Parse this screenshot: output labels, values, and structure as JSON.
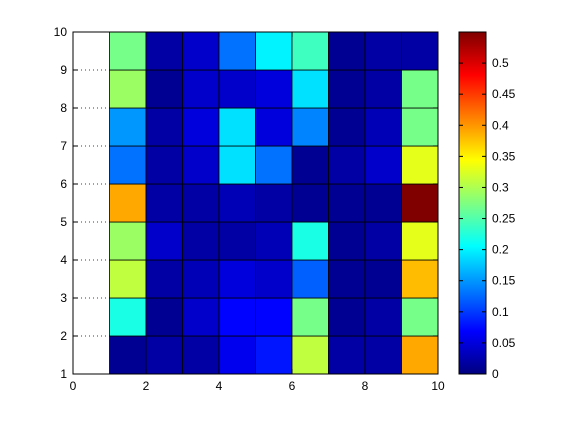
{
  "chart_data": {
    "type": "heatmap",
    "title": "",
    "xlabel": "",
    "ylabel": "",
    "xlim": [
      0,
      10
    ],
    "ylim": [
      1,
      10
    ],
    "grid": "dotted",
    "x_ticks": [
      "0",
      "2",
      "4",
      "6",
      "8",
      "10"
    ],
    "y_ticks": [
      "1",
      "2",
      "3",
      "4",
      "5",
      "6",
      "7",
      "8",
      "9",
      "10"
    ],
    "colormap": "jet",
    "color_range": [
      0,
      0.55
    ],
    "colorbar_ticks": [
      "0",
      "0.05",
      "0.1",
      "0.15",
      "0.2",
      "0.25",
      "0.3",
      "0.35",
      "0.4",
      "0.45",
      "0.5"
    ],
    "cell_x_edges": [
      1,
      2,
      3,
      4,
      5,
      6,
      7,
      8,
      9,
      10
    ],
    "cell_y_edges": [
      1,
      2,
      3,
      4,
      5,
      6,
      7,
      8,
      9,
      10
    ],
    "values": [
      [
        0.01,
        0.02,
        0.02,
        0.06,
        0.08,
        0.31,
        0.02,
        0.02,
        0.39
      ],
      [
        0.22,
        0.01,
        0.04,
        0.07,
        0.07,
        0.27,
        0.01,
        0.02,
        0.27
      ],
      [
        0.31,
        0.02,
        0.03,
        0.05,
        0.04,
        0.12,
        0.01,
        0.01,
        0.38
      ],
      [
        0.29,
        0.04,
        0.02,
        0.02,
        0.03,
        0.22,
        0.01,
        0.02,
        0.33
      ],
      [
        0.39,
        0.02,
        0.02,
        0.03,
        0.02,
        0.01,
        0.01,
        0.01,
        0.55
      ],
      [
        0.13,
        0.02,
        0.04,
        0.19,
        0.13,
        0.01,
        0.02,
        0.04,
        0.33
      ],
      [
        0.15,
        0.02,
        0.05,
        0.19,
        0.05,
        0.14,
        0.01,
        0.03,
        0.27
      ],
      [
        0.29,
        0.01,
        0.04,
        0.04,
        0.05,
        0.19,
        0.01,
        0.02,
        0.27
      ],
      [
        0.27,
        0.02,
        0.04,
        0.13,
        0.2,
        0.24,
        0.01,
        0.02,
        0.02
      ]
    ]
  }
}
